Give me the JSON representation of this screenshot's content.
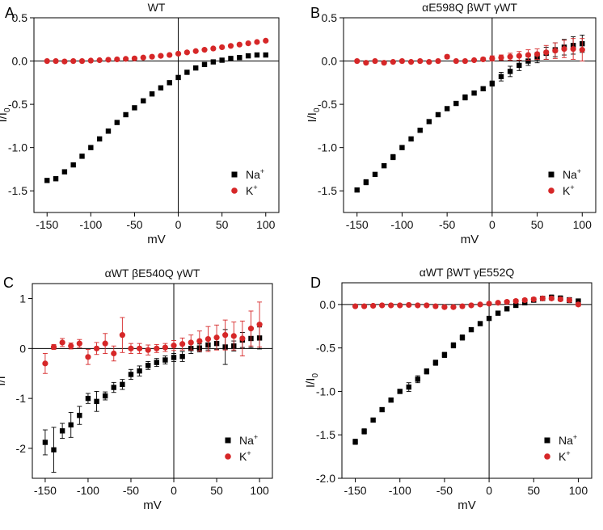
{
  "chart_data": [
    {
      "type": "scatter",
      "panel_letter": "A",
      "title": "WT",
      "xlabel": "mV",
      "ylabel": "I/I",
      "ylabel_subscript": "0",
      "xlim": [
        -165,
        115
      ],
      "ylim": [
        -1.75,
        0.5
      ],
      "x_ticks": [
        -150,
        -100,
        -50,
        0,
        50,
        100
      ],
      "x_tick_labels": [
        "-150",
        "-100",
        "-50",
        "0",
        "50",
        "100"
      ],
      "y_ticks": [
        -1.5,
        -1.0,
        -0.5,
        0.0,
        0.5
      ],
      "y_tick_labels": [
        "-1.5",
        "-1.0",
        "-0.5",
        "0.0",
        "0.5"
      ],
      "grid": false,
      "legend_position": "bottom-right",
      "series": [
        {
          "name": "Na+",
          "legend_base": "Na",
          "legend_sup": "+",
          "color": "#000000",
          "marker": "square",
          "x": [
            -150,
            -140,
            -130,
            -120,
            -110,
            -100,
            -90,
            -80,
            -70,
            -60,
            -50,
            -40,
            -30,
            -20,
            -10,
            0,
            10,
            20,
            30,
            40,
            50,
            60,
            70,
            80,
            90,
            100
          ],
          "y": [
            -1.38,
            -1.36,
            -1.28,
            -1.2,
            -1.1,
            -1.0,
            -0.9,
            -0.81,
            -0.71,
            -0.62,
            -0.54,
            -0.46,
            -0.38,
            -0.31,
            -0.25,
            -0.19,
            -0.13,
            -0.08,
            -0.04,
            -0.01,
            0.01,
            0.03,
            0.04,
            0.06,
            0.07,
            0.07
          ],
          "err": []
        },
        {
          "name": "K+",
          "legend_base": "K",
          "legend_sup": "+",
          "color": "#d62728",
          "marker": "circle",
          "x": [
            -150,
            -140,
            -130,
            -120,
            -110,
            -100,
            -90,
            -80,
            -70,
            -60,
            -50,
            -40,
            -30,
            -20,
            -10,
            0,
            10,
            20,
            30,
            40,
            50,
            60,
            70,
            80,
            90,
            100
          ],
          "y": [
            0.0,
            0.0,
            -0.005,
            0.0,
            0.0,
            0.005,
            0.01,
            0.015,
            0.02,
            0.025,
            0.03,
            0.04,
            0.05,
            0.06,
            0.07,
            0.085,
            0.1,
            0.115,
            0.13,
            0.145,
            0.16,
            0.175,
            0.19,
            0.205,
            0.22,
            0.235
          ],
          "err": []
        }
      ]
    },
    {
      "type": "scatter",
      "panel_letter": "B",
      "title": "αE598Q βWT γWT",
      "xlabel": "mV",
      "ylabel": "I/I",
      "ylabel_subscript": "0",
      "xlim": [
        -165,
        115
      ],
      "ylim": [
        -1.75,
        0.5
      ],
      "x_ticks": [
        -150,
        -100,
        -50,
        0,
        50,
        100
      ],
      "x_tick_labels": [
        "-150",
        "-100",
        "-50",
        "0",
        "50",
        "100"
      ],
      "y_ticks": [
        -1.5,
        -1.0,
        -0.5,
        0.0,
        0.5
      ],
      "y_tick_labels": [
        "-1.5",
        "-1.0",
        "-0.5",
        "0.0",
        "0.5"
      ],
      "grid": false,
      "legend_position": "bottom-right",
      "series": [
        {
          "name": "Na+",
          "legend_base": "Na",
          "legend_sup": "+",
          "color": "#000000",
          "marker": "square",
          "x": [
            -150,
            -140,
            -130,
            -120,
            -110,
            -100,
            -90,
            -80,
            -70,
            -60,
            -50,
            -40,
            -30,
            -20,
            -10,
            0,
            10,
            20,
            30,
            40,
            50,
            60,
            70,
            80,
            90,
            100
          ],
          "y": [
            -1.49,
            -1.4,
            -1.31,
            -1.21,
            -1.11,
            -1.0,
            -0.9,
            -0.8,
            -0.7,
            -0.62,
            -0.55,
            -0.49,
            -0.42,
            -0.37,
            -0.32,
            -0.26,
            -0.18,
            -0.12,
            -0.05,
            0.0,
            0.04,
            0.09,
            0.13,
            0.16,
            0.18,
            0.2
          ],
          "err": [
            0.02,
            0.03,
            0.02,
            0.02,
            0.03,
            0.02,
            0.02,
            0.02,
            0.02,
            0.02,
            0.02,
            0.02,
            0.03,
            0.02,
            0.02,
            0.03,
            0.05,
            0.06,
            0.06,
            0.05,
            0.06,
            0.07,
            0.08,
            0.09,
            0.1,
            0.1
          ]
        },
        {
          "name": "K+",
          "legend_base": "K",
          "legend_sup": "+",
          "color": "#d62728",
          "marker": "circle",
          "x": [
            -150,
            -140,
            -130,
            -120,
            -110,
            -100,
            -90,
            -80,
            -70,
            -60,
            -50,
            -40,
            -30,
            -20,
            -10,
            0,
            10,
            20,
            30,
            40,
            50,
            60,
            70,
            80,
            90,
            100
          ],
          "y": [
            0.0,
            -0.02,
            0.0,
            -0.02,
            -0.01,
            0.0,
            -0.01,
            0.0,
            -0.01,
            0.0,
            0.05,
            0.0,
            0.0,
            0.01,
            0.02,
            0.03,
            0.04,
            0.05,
            0.06,
            0.07,
            0.08,
            0.1,
            0.12,
            0.14,
            0.14,
            0.13
          ],
          "err": [
            0.01,
            0.01,
            0.01,
            0.01,
            0.01,
            0.01,
            0.01,
            0.01,
            0.01,
            0.01,
            0.02,
            0.01,
            0.01,
            0.01,
            0.02,
            0.03,
            0.03,
            0.04,
            0.05,
            0.06,
            0.06,
            0.08,
            0.09,
            0.1,
            0.12,
            0.13
          ]
        }
      ]
    },
    {
      "type": "scatter",
      "panel_letter": "C",
      "title": "αWT βE540Q γWT",
      "xlabel": "mV",
      "ylabel": "I/I",
      "ylabel_subscript": "",
      "xlim": [
        -165,
        115
      ],
      "ylim": [
        -2.6,
        1.3
      ],
      "x_ticks": [
        -150,
        -100,
        -50,
        0,
        50,
        100
      ],
      "x_tick_labels": [
        "-150",
        "-100",
        "-50",
        "0",
        "50",
        "100"
      ],
      "y_ticks": [
        -2,
        -1,
        0,
        1
      ],
      "y_tick_labels": [
        "-2",
        "-1",
        "0",
        "1"
      ],
      "grid": false,
      "legend_position": "bottom-right",
      "series": [
        {
          "name": "Na+",
          "legend_base": "Na",
          "legend_sup": "+",
          "color": "#000000",
          "marker": "square",
          "x": [
            -150,
            -140,
            -130,
            -120,
            -110,
            -100,
            -90,
            -80,
            -70,
            -60,
            -50,
            -40,
            -30,
            -20,
            -10,
            0,
            10,
            20,
            30,
            40,
            50,
            60,
            70,
            80,
            90,
            100
          ],
          "y": [
            -1.88,
            -2.03,
            -1.65,
            -1.53,
            -1.34,
            -1.0,
            -1.06,
            -0.95,
            -0.78,
            -0.72,
            -0.52,
            -0.45,
            -0.34,
            -0.28,
            -0.23,
            -0.18,
            -0.16,
            0.0,
            0.01,
            0.07,
            0.1,
            0.03,
            0.05,
            0.17,
            0.2,
            0.21
          ],
          "err": [
            0.25,
            0.45,
            0.15,
            0.25,
            0.18,
            0.1,
            0.2,
            0.08,
            0.1,
            0.1,
            0.1,
            0.1,
            0.08,
            0.08,
            0.08,
            0.08,
            0.1,
            0.1,
            0.08,
            0.1,
            0.12,
            0.35,
            0.1,
            0.15,
            0.18,
            0.22
          ]
        },
        {
          "name": "K+",
          "legend_base": "K",
          "legend_sup": "+",
          "color": "#d62728",
          "marker": "circle",
          "x": [
            -150,
            -140,
            -130,
            -120,
            -110,
            -100,
            -90,
            -80,
            -70,
            -60,
            -50,
            -40,
            -30,
            -20,
            -10,
            0,
            10,
            20,
            30,
            40,
            50,
            60,
            70,
            80,
            90,
            100
          ],
          "y": [
            -0.3,
            0.03,
            0.12,
            0.05,
            0.1,
            -0.17,
            0.0,
            0.1,
            -0.1,
            0.27,
            0.0,
            0.0,
            -0.03,
            0.0,
            0.02,
            0.06,
            0.09,
            0.12,
            0.15,
            0.19,
            0.22,
            0.27,
            0.25,
            0.2,
            0.4,
            0.48
          ],
          "err": [
            0.2,
            0.05,
            0.08,
            0.06,
            0.08,
            0.15,
            0.12,
            0.2,
            0.15,
            0.35,
            0.1,
            0.1,
            0.1,
            0.08,
            0.08,
            0.1,
            0.12,
            0.15,
            0.2,
            0.25,
            0.25,
            0.3,
            0.28,
            0.35,
            0.35,
            0.45
          ]
        }
      ]
    },
    {
      "type": "scatter",
      "panel_letter": "D",
      "title": "αWT βWT γE552Q",
      "xlabel": "mV",
      "ylabel": "I/I",
      "ylabel_subscript": "0",
      "xlim": [
        -165,
        115
      ],
      "ylim": [
        -2.0,
        0.25
      ],
      "x_ticks": [
        -150,
        -100,
        -50,
        0,
        50,
        100
      ],
      "x_tick_labels": [
        "-150",
        "-100",
        "-50",
        "0",
        "50",
        "100"
      ],
      "y_ticks": [
        -2.0,
        -1.5,
        -1.0,
        -0.5,
        0.0
      ],
      "y_tick_labels": [
        "-2.0",
        "-1.5",
        "-1.0",
        "-0.5",
        "0.0"
      ],
      "grid": false,
      "legend_position": "bottom-right",
      "series": [
        {
          "name": "Na+",
          "legend_base": "Na",
          "legend_sup": "+",
          "color": "#000000",
          "marker": "square",
          "x": [
            -150,
            -140,
            -130,
            -120,
            -110,
            -100,
            -90,
            -80,
            -70,
            -60,
            -50,
            -40,
            -30,
            -20,
            -10,
            0,
            10,
            20,
            30,
            40,
            50,
            60,
            70,
            80,
            90,
            100
          ],
          "y": [
            -1.58,
            -1.46,
            -1.33,
            -1.21,
            -1.1,
            -1.0,
            -0.95,
            -0.86,
            -0.77,
            -0.67,
            -0.58,
            -0.47,
            -0.38,
            -0.29,
            -0.22,
            -0.16,
            -0.1,
            -0.05,
            -0.01,
            0.02,
            0.05,
            0.07,
            0.08,
            0.07,
            0.05,
            0.04
          ],
          "err": [
            0.03,
            0.03,
            0.02,
            0.02,
            0.02,
            0.02,
            0.05,
            0.04,
            0.03,
            0.03,
            0.03,
            0.03,
            0.03,
            0.02,
            0.02,
            0.02,
            0.02,
            0.02,
            0.02,
            0.02,
            0.02,
            0.02,
            0.03,
            0.03,
            0.03,
            0.02
          ]
        },
        {
          "name": "K+",
          "legend_base": "K",
          "legend_sup": "+",
          "color": "#d62728",
          "marker": "circle",
          "x": [
            -150,
            -140,
            -130,
            -120,
            -110,
            -100,
            -90,
            -80,
            -70,
            -60,
            -50,
            -40,
            -30,
            -20,
            -10,
            0,
            10,
            20,
            30,
            40,
            50,
            60,
            70,
            80,
            90,
            100
          ],
          "y": [
            -0.02,
            -0.02,
            -0.015,
            -0.01,
            -0.01,
            -0.01,
            -0.005,
            -0.01,
            -0.01,
            -0.02,
            -0.03,
            -0.03,
            -0.02,
            -0.01,
            0.0,
            0.01,
            0.02,
            0.03,
            0.04,
            0.05,
            0.06,
            0.07,
            0.07,
            0.06,
            0.05,
            0.0
          ],
          "err": [
            0.01,
            0.01,
            0.01,
            0.01,
            0.01,
            0.01,
            0.01,
            0.01,
            0.01,
            0.01,
            0.01,
            0.01,
            0.01,
            0.01,
            0.01,
            0.01,
            0.01,
            0.02,
            0.02,
            0.02,
            0.02,
            0.02,
            0.02,
            0.02,
            0.02,
            0.02
          ]
        }
      ]
    }
  ]
}
